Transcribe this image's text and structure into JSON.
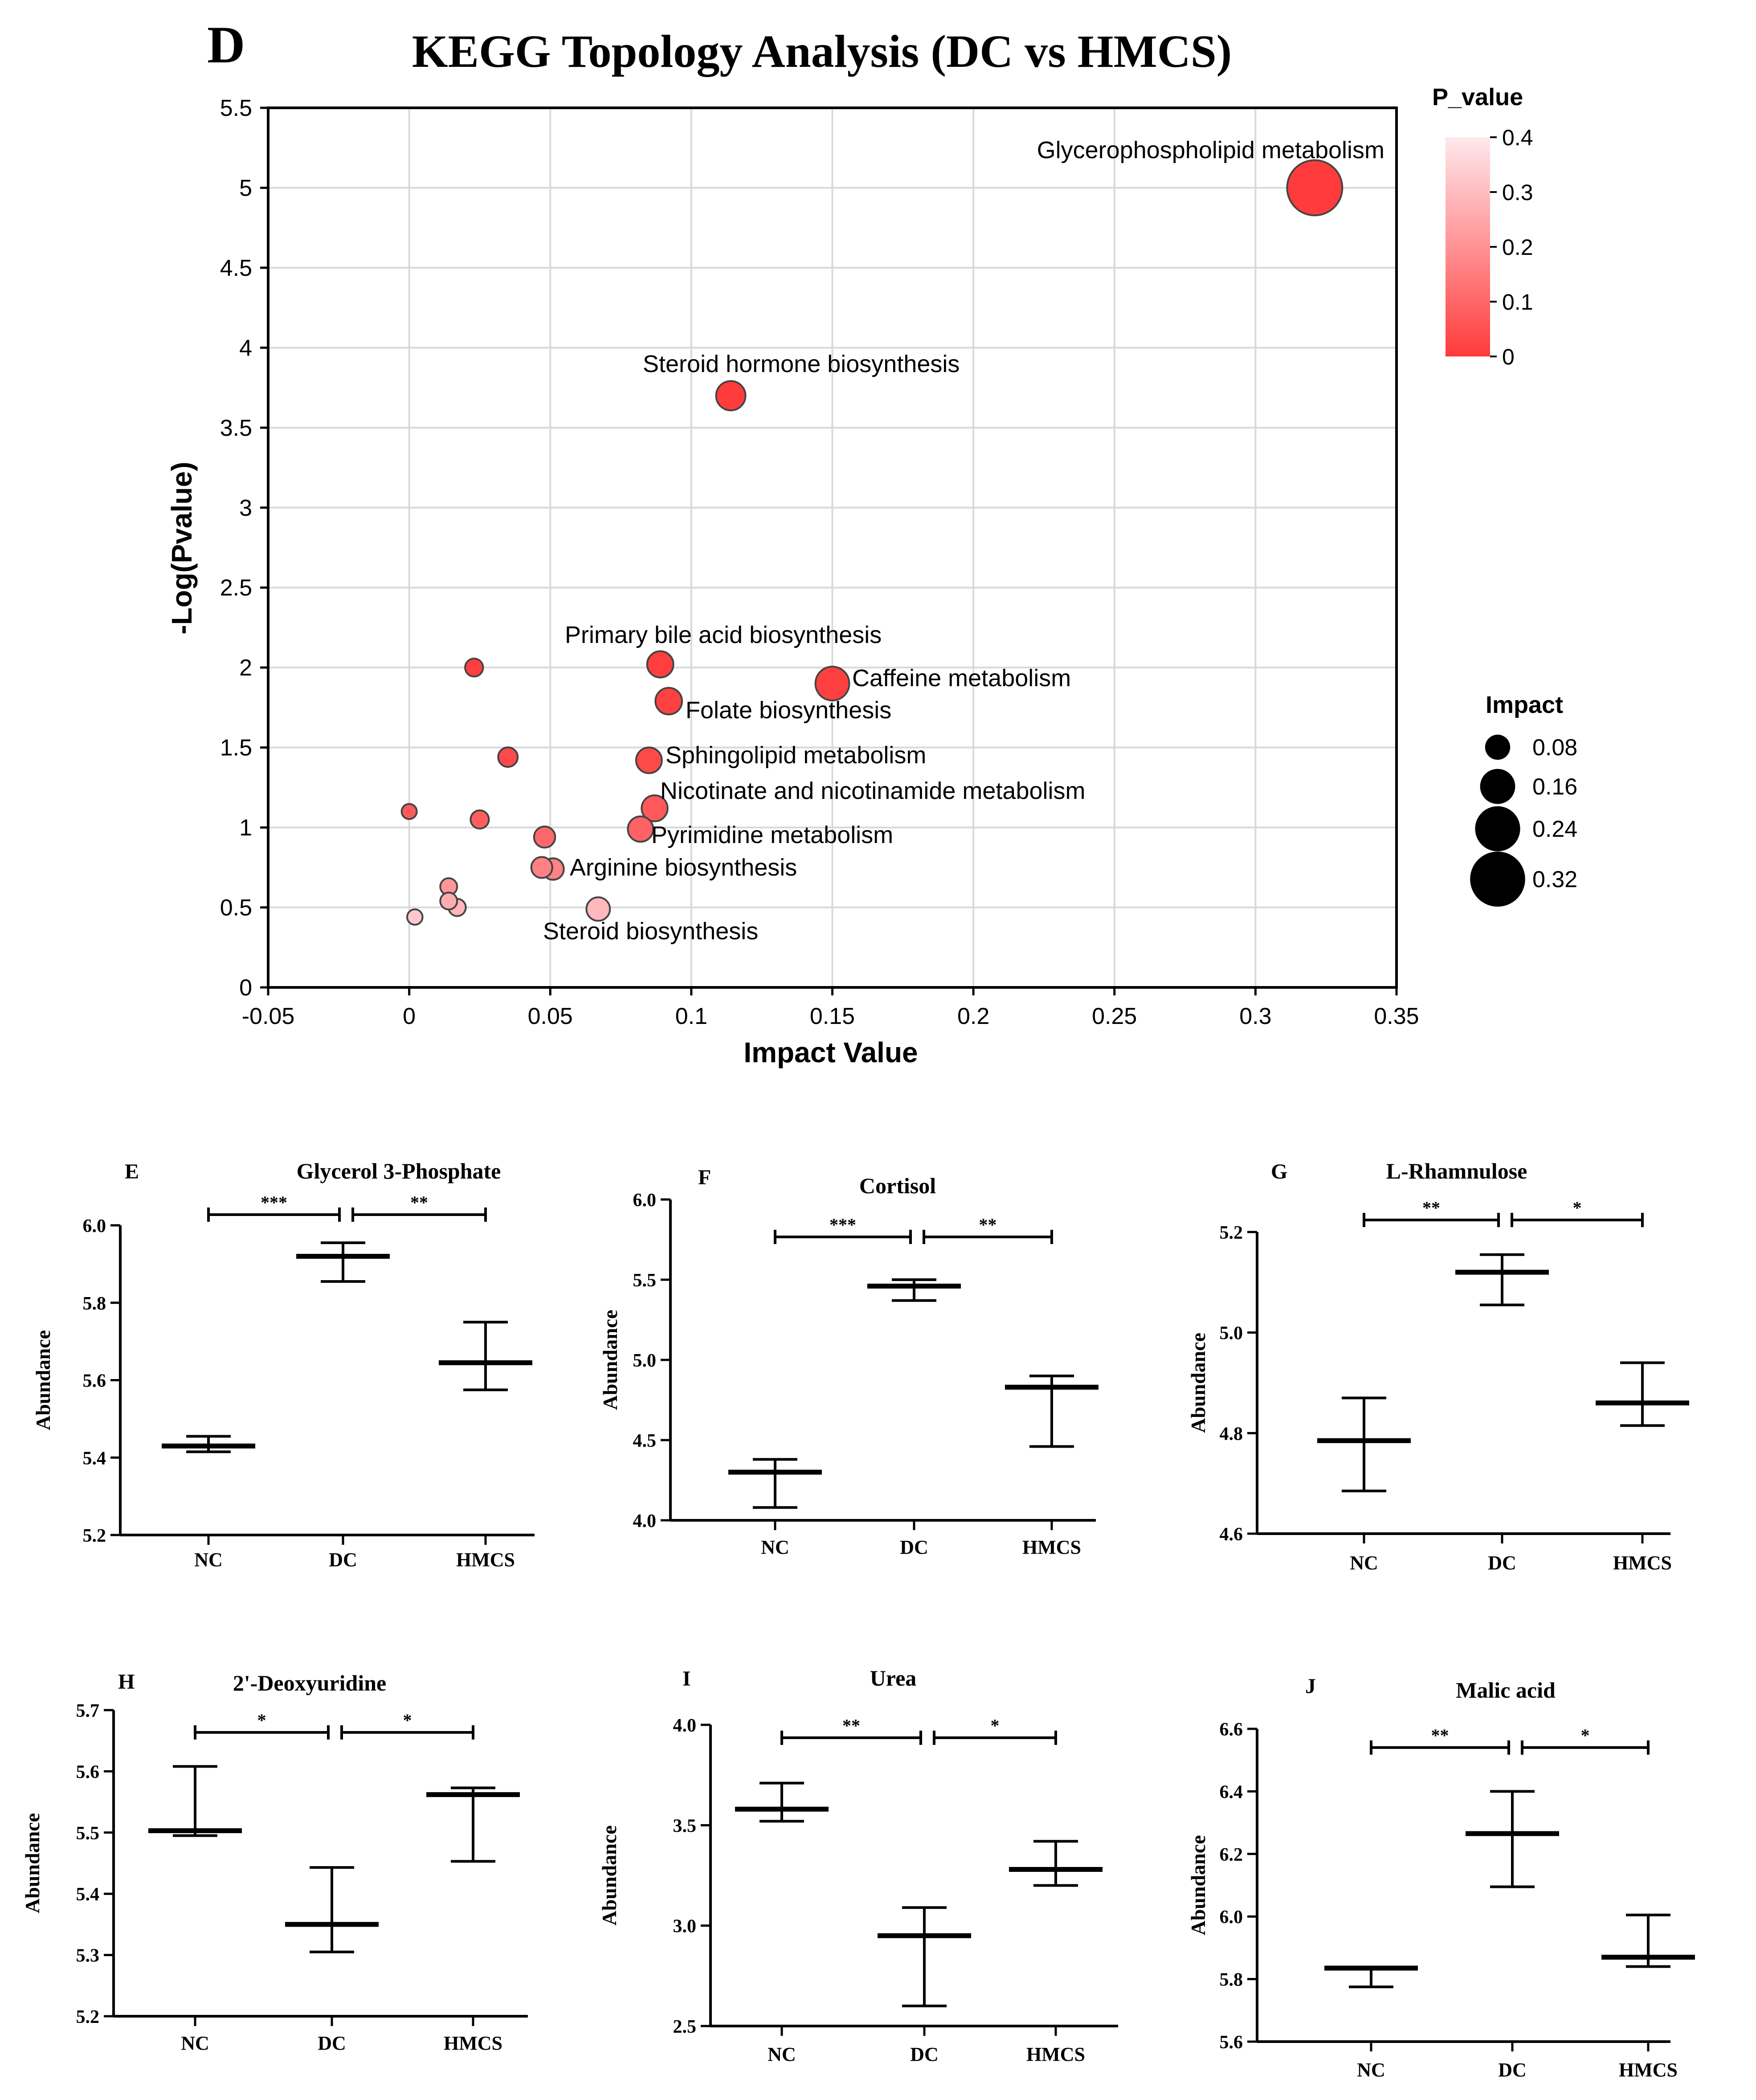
{
  "colors": {
    "bubble_low": "#ff3b3b",
    "bubble_high": "#ffd8dd",
    "grid": "#d9d9d9",
    "axis": "#000000"
  },
  "chart_data": [
    {
      "type": "scatter",
      "panel": "D",
      "title": "KEGG Topology Analysis (DC vs HMCS)",
      "xlabel": "Impact Value",
      "ylabel": "-Log(Pvalue)",
      "xlim": [
        -0.05,
        0.35
      ],
      "ylim": [
        0,
        5.5
      ],
      "xticks": [
        "-0.05",
        "0",
        "0.05",
        "0.1",
        "0.15",
        "0.2",
        "0.25",
        "0.3",
        "0.35"
      ],
      "yticks": [
        "0",
        "0.5",
        "1",
        "1.5",
        "2",
        "2.5",
        "3",
        "3.5",
        "4",
        "4.5",
        "5",
        "5.5"
      ],
      "grid": true,
      "color_legend": {
        "title": "P_value",
        "ticks": [
          "0.4",
          "0.3",
          "0.2",
          "0.1",
          "0"
        ],
        "range": [
          0,
          0.4
        ]
      },
      "size_legend": {
        "title": "Impact",
        "entries": [
          "0.08",
          "0.16",
          "0.24",
          "0.32"
        ]
      },
      "points": [
        {
          "x": 0.321,
          "y": 5.0,
          "p": 1e-05,
          "label": "Glycerophospholipid metabolism"
        },
        {
          "x": 0.114,
          "y": 3.7,
          "p": 0.0002,
          "label": "Steroid hormone biosynthesis"
        },
        {
          "x": 0.089,
          "y": 2.02,
          "p": 0.0095,
          "label": "Primary bile acid biosynthesis"
        },
        {
          "x": 0.15,
          "y": 1.9,
          "p": 0.0126,
          "label": "Caffeine metabolism"
        },
        {
          "x": 0.092,
          "y": 1.79,
          "p": 0.016,
          "label": "Folate biosynthesis"
        },
        {
          "x": 0.085,
          "y": 1.42,
          "p": 0.038,
          "label": "Sphingolipid metabolism"
        },
        {
          "x": 0.087,
          "y": 1.12,
          "p": 0.076,
          "label": "Nicotinate and nicotinamide metabolism"
        },
        {
          "x": 0.082,
          "y": 0.99,
          "p": 0.1,
          "label": "Pyrimidine metabolism"
        },
        {
          "x": 0.051,
          "y": 0.74,
          "p": 0.18,
          "label": "Arginine biosynthesis"
        },
        {
          "x": 0.067,
          "y": 0.49,
          "p": 0.32,
          "label": "Steroid biosynthesis"
        },
        {
          "x": 0.023,
          "y": 2.0,
          "p": 0.01,
          "label": ""
        },
        {
          "x": 0.035,
          "y": 1.44,
          "p": 0.036,
          "label": ""
        },
        {
          "x": 0.0,
          "y": 1.1,
          "p": 0.079,
          "label": ""
        },
        {
          "x": 0.025,
          "y": 1.05,
          "p": 0.089,
          "label": ""
        },
        {
          "x": 0.048,
          "y": 0.94,
          "p": 0.115,
          "label": ""
        },
        {
          "x": 0.047,
          "y": 0.75,
          "p": 0.178,
          "label": ""
        },
        {
          "x": 0.014,
          "y": 0.63,
          "p": 0.23,
          "label": ""
        },
        {
          "x": 0.014,
          "y": 0.54,
          "p": 0.29,
          "label": ""
        },
        {
          "x": 0.017,
          "y": 0.5,
          "p": 0.31,
          "label": ""
        },
        {
          "x": 0.002,
          "y": 0.44,
          "p": 0.36,
          "label": ""
        }
      ]
    },
    {
      "type": "box",
      "panel": "E",
      "title": "Glycerol 3-Phosphate",
      "ylabel": "Abundance",
      "ylim": [
        5.2,
        6.0
      ],
      "yticks": [
        "5.2",
        "5.4",
        "5.6",
        "5.8",
        "6.0"
      ],
      "categories": [
        "NC",
        "DC",
        "HMCS"
      ],
      "groups": [
        {
          "low": 5.415,
          "mid": 5.43,
          "high": 5.455
        },
        {
          "low": 5.855,
          "mid": 5.92,
          "high": 5.955
        },
        {
          "low": 5.575,
          "mid": 5.645,
          "high": 5.75
        }
      ],
      "significance": [
        "***",
        "**"
      ]
    },
    {
      "type": "box",
      "panel": "F",
      "title": "Cortisol",
      "ylabel": "Abundance",
      "ylim": [
        4.0,
        6.0
      ],
      "yticks": [
        "4.0",
        "4.5",
        "5.0",
        "5.5",
        "6.0"
      ],
      "categories": [
        "NC",
        "DC",
        "HMCS"
      ],
      "groups": [
        {
          "low": 4.08,
          "mid": 4.3,
          "high": 4.38
        },
        {
          "low": 5.37,
          "mid": 5.46,
          "high": 5.5
        },
        {
          "low": 4.46,
          "mid": 4.83,
          "high": 4.9
        }
      ],
      "significance": [
        "***",
        "**"
      ]
    },
    {
      "type": "box",
      "panel": "G",
      "title": "L-Rhamnulose",
      "ylabel": "Abundance",
      "ylim": [
        4.6,
        5.2
      ],
      "yticks": [
        "4.6",
        "4.8",
        "5.0",
        "5.2"
      ],
      "categories": [
        "NC",
        "DC",
        "HMCS"
      ],
      "groups": [
        {
          "low": 4.685,
          "mid": 4.785,
          "high": 4.87
        },
        {
          "low": 5.055,
          "mid": 5.12,
          "high": 5.155
        },
        {
          "low": 4.815,
          "mid": 4.86,
          "high": 4.94
        }
      ],
      "significance": [
        "**",
        "*"
      ]
    },
    {
      "type": "box",
      "panel": "H",
      "title": "2'-Deoxyuridine",
      "ylabel": "Abundance",
      "ylim": [
        5.2,
        5.7
      ],
      "yticks": [
        "5.2",
        "5.3",
        "5.4",
        "5.5",
        "5.6",
        "5.7"
      ],
      "categories": [
        "NC",
        "DC",
        "HMCS"
      ],
      "groups": [
        {
          "low": 5.495,
          "mid": 5.503,
          "high": 5.608
        },
        {
          "low": 5.305,
          "mid": 5.35,
          "high": 5.443
        },
        {
          "low": 5.453,
          "mid": 5.562,
          "high": 5.573
        }
      ],
      "significance": [
        "*",
        "*"
      ]
    },
    {
      "type": "box",
      "panel": "I",
      "title": "Urea",
      "ylabel": "Abundance",
      "ylim": [
        2.5,
        4.0
      ],
      "yticks": [
        "2.5",
        "3.0",
        "3.5",
        "4.0"
      ],
      "categories": [
        "NC",
        "DC",
        "HMCS"
      ],
      "groups": [
        {
          "low": 3.52,
          "mid": 3.58,
          "high": 3.71
        },
        {
          "low": 2.6,
          "mid": 2.95,
          "high": 3.09
        },
        {
          "low": 3.2,
          "mid": 3.28,
          "high": 3.42
        }
      ],
      "significance": [
        "**",
        "*"
      ]
    },
    {
      "type": "box",
      "panel": "J",
      "title": "Malic acid",
      "ylabel": "Abundance",
      "ylim": [
        5.6,
        6.6
      ],
      "yticks": [
        "5.6",
        "5.8",
        "6.0",
        "6.2",
        "6.4",
        "6.6"
      ],
      "categories": [
        "NC",
        "DC",
        "HMCS"
      ],
      "groups": [
        {
          "low": 5.775,
          "mid": 5.835,
          "high": 5.835
        },
        {
          "low": 6.095,
          "mid": 6.265,
          "high": 6.4
        },
        {
          "low": 5.84,
          "mid": 5.87,
          "high": 6.005
        }
      ],
      "significance": [
        "**",
        "*"
      ]
    }
  ]
}
